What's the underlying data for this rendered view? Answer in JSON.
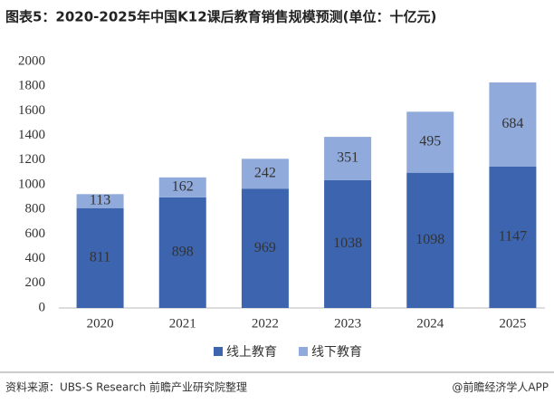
{
  "chart_data": {
    "type": "stacked_bar",
    "title": "图表5：2020-2025年中国K12课后教育销售规模预测(单位：十亿元)",
    "categories": [
      "2020",
      "2021",
      "2022",
      "2023",
      "2024",
      "2025"
    ],
    "series": [
      {
        "name": "线上教育",
        "color": "#3d64ae",
        "values": [
          811,
          898,
          969,
          1038,
          1098,
          1147
        ]
      },
      {
        "name": "线下教育",
        "color": "#8faadb",
        "values": [
          113,
          162,
          242,
          351,
          495,
          684
        ]
      }
    ],
    "ylim": [
      0,
      2000
    ],
    "yticks": [
      0,
      200,
      400,
      600,
      800,
      1000,
      1200,
      1400,
      1600,
      1800,
      2000
    ],
    "grid": false,
    "legend": "bottom",
    "source": "资料来源：UBS-S Research 前瞻产业研究院整理",
    "credit": "@前瞻经济学人APP"
  }
}
